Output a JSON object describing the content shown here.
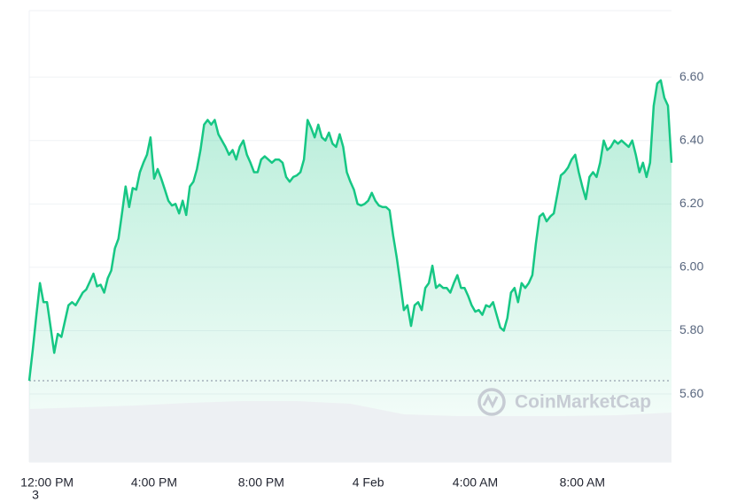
{
  "chart_data": {
    "type": "line",
    "x": [
      -40,
      -32,
      -24,
      -16,
      -8,
      0,
      8,
      16,
      24,
      32,
      40,
      48,
      56,
      64,
      72,
      80,
      88,
      96,
      104,
      112,
      120,
      128,
      136,
      144,
      152,
      160,
      168,
      176,
      184,
      192,
      200,
      208,
      216,
      224,
      232,
      240,
      248,
      256,
      264,
      272,
      280,
      288,
      296,
      304,
      312,
      320,
      328,
      336,
      344,
      352,
      360,
      368,
      376,
      384,
      392,
      400,
      408,
      416,
      424,
      432,
      440,
      448,
      456,
      464,
      472,
      480,
      488,
      496,
      504,
      512,
      520,
      528,
      536,
      544,
      552,
      560,
      568,
      576,
      584,
      592,
      600,
      608,
      616,
      624,
      632,
      640,
      648,
      656,
      664,
      672,
      680,
      688,
      696,
      704,
      712,
      720,
      728,
      736,
      744,
      752,
      760,
      768,
      776,
      784,
      792,
      800,
      808,
      816,
      824,
      832,
      840,
      848,
      856,
      864,
      872,
      880,
      888,
      896,
      904,
      912,
      920,
      928,
      936,
      944,
      952,
      960,
      968,
      976,
      984,
      992,
      1000,
      1008,
      1016,
      1024,
      1032,
      1040,
      1048,
      1056,
      1064,
      1072,
      1080,
      1088,
      1096,
      1104,
      1112,
      1120,
      1128,
      1136,
      1144,
      1152,
      1160,
      1168,
      1176,
      1184,
      1192,
      1200,
      1208,
      1216,
      1224,
      1232,
      1240,
      1248,
      1256,
      1264,
      1272,
      1280,
      1288,
      1296,
      1304,
      1312,
      1320,
      1328,
      1336,
      1344,
      1352,
      1360,
      1368,
      1376,
      1384,
      1392,
      1400
    ],
    "values": [
      5.642,
      5.74,
      5.85,
      5.95,
      5.89,
      5.89,
      5.81,
      5.73,
      5.79,
      5.78,
      5.83,
      5.88,
      5.89,
      5.88,
      5.9,
      5.92,
      5.93,
      5.955,
      5.98,
      5.94,
      5.945,
      5.92,
      5.965,
      5.99,
      6.06,
      6.09,
      6.17,
      6.255,
      6.19,
      6.25,
      6.245,
      6.3,
      6.33,
      6.355,
      6.41,
      6.28,
      6.31,
      6.28,
      6.245,
      6.21,
      6.195,
      6.2,
      6.17,
      6.21,
      6.165,
      6.255,
      6.27,
      6.31,
      6.37,
      6.45,
      6.465,
      6.45,
      6.465,
      6.42,
      6.4,
      6.38,
      6.355,
      6.37,
      6.34,
      6.38,
      6.4,
      6.355,
      6.33,
      6.3,
      6.3,
      6.34,
      6.35,
      6.34,
      6.33,
      6.34,
      6.34,
      6.33,
      6.285,
      6.27,
      6.285,
      6.29,
      6.3,
      6.34,
      6.465,
      6.44,
      6.41,
      6.45,
      6.41,
      6.4,
      6.425,
      6.39,
      6.38,
      6.42,
      6.38,
      6.3,
      6.27,
      6.245,
      6.2,
      6.195,
      6.2,
      6.21,
      6.235,
      6.21,
      6.195,
      6.19,
      6.19,
      6.18,
      6.1,
      6.03,
      5.95,
      5.865,
      5.88,
      5.815,
      5.88,
      5.89,
      5.865,
      5.935,
      5.95,
      6.005,
      5.935,
      5.945,
      5.935,
      5.935,
      5.92,
      5.95,
      5.975,
      5.935,
      5.935,
      5.91,
      5.88,
      5.86,
      5.865,
      5.85,
      5.88,
      5.875,
      5.89,
      5.85,
      5.81,
      5.8,
      5.84,
      5.92,
      5.935,
      5.89,
      5.95,
      5.935,
      5.95,
      5.975,
      6.075,
      6.16,
      6.17,
      6.145,
      6.16,
      6.17,
      6.23,
      6.29,
      6.3,
      6.315,
      6.34,
      6.355,
      6.3,
      6.255,
      6.215,
      6.285,
      6.3,
      6.285,
      6.33,
      6.4,
      6.37,
      6.38,
      6.4,
      6.39,
      6.4,
      6.39,
      6.38,
      6.4,
      6.355,
      6.3,
      6.33,
      6.285,
      6.33,
      6.51,
      6.58,
      6.59,
      6.535,
      6.51,
      6.33
    ],
    "color": "#16c784",
    "xlim": [
      -40,
      1400
    ],
    "xticks": [
      {
        "value": 0,
        "label": "12:00 PM"
      },
      {
        "value": 240,
        "label": "4:00 PM"
      },
      {
        "value": 480,
        "label": "8:00 PM"
      },
      {
        "value": 720,
        "label": "4 Feb"
      },
      {
        "value": 960,
        "label": "4:00 AM"
      },
      {
        "value": 1200,
        "label": "8:00 AM"
      }
    ],
    "ylim": [
      5.385,
      6.81
    ],
    "yticks": [
      {
        "value": 5.6,
        "label": "5.60"
      },
      {
        "value": 5.8,
        "label": "5.80"
      },
      {
        "value": 6,
        "label": "6.00"
      },
      {
        "value": 6.2,
        "label": "6.20"
      },
      {
        "value": 6.4,
        "label": "6.40"
      },
      {
        "value": 6.6,
        "label": "6.60"
      }
    ],
    "grid": true,
    "volume": {
      "x": [
        -40,
        80,
        200,
        320,
        440,
        560,
        680,
        800,
        920,
        1040,
        1160,
        1280,
        1400
      ],
      "values": [
        60,
        62,
        64,
        67,
        69,
        69,
        66,
        54,
        52,
        52,
        52,
        53,
        56
      ],
      "ylim": [
        0,
        100
      ],
      "color": "#eceef2"
    }
  },
  "watermark": "CoinMarketCap",
  "footer_note": "3"
}
